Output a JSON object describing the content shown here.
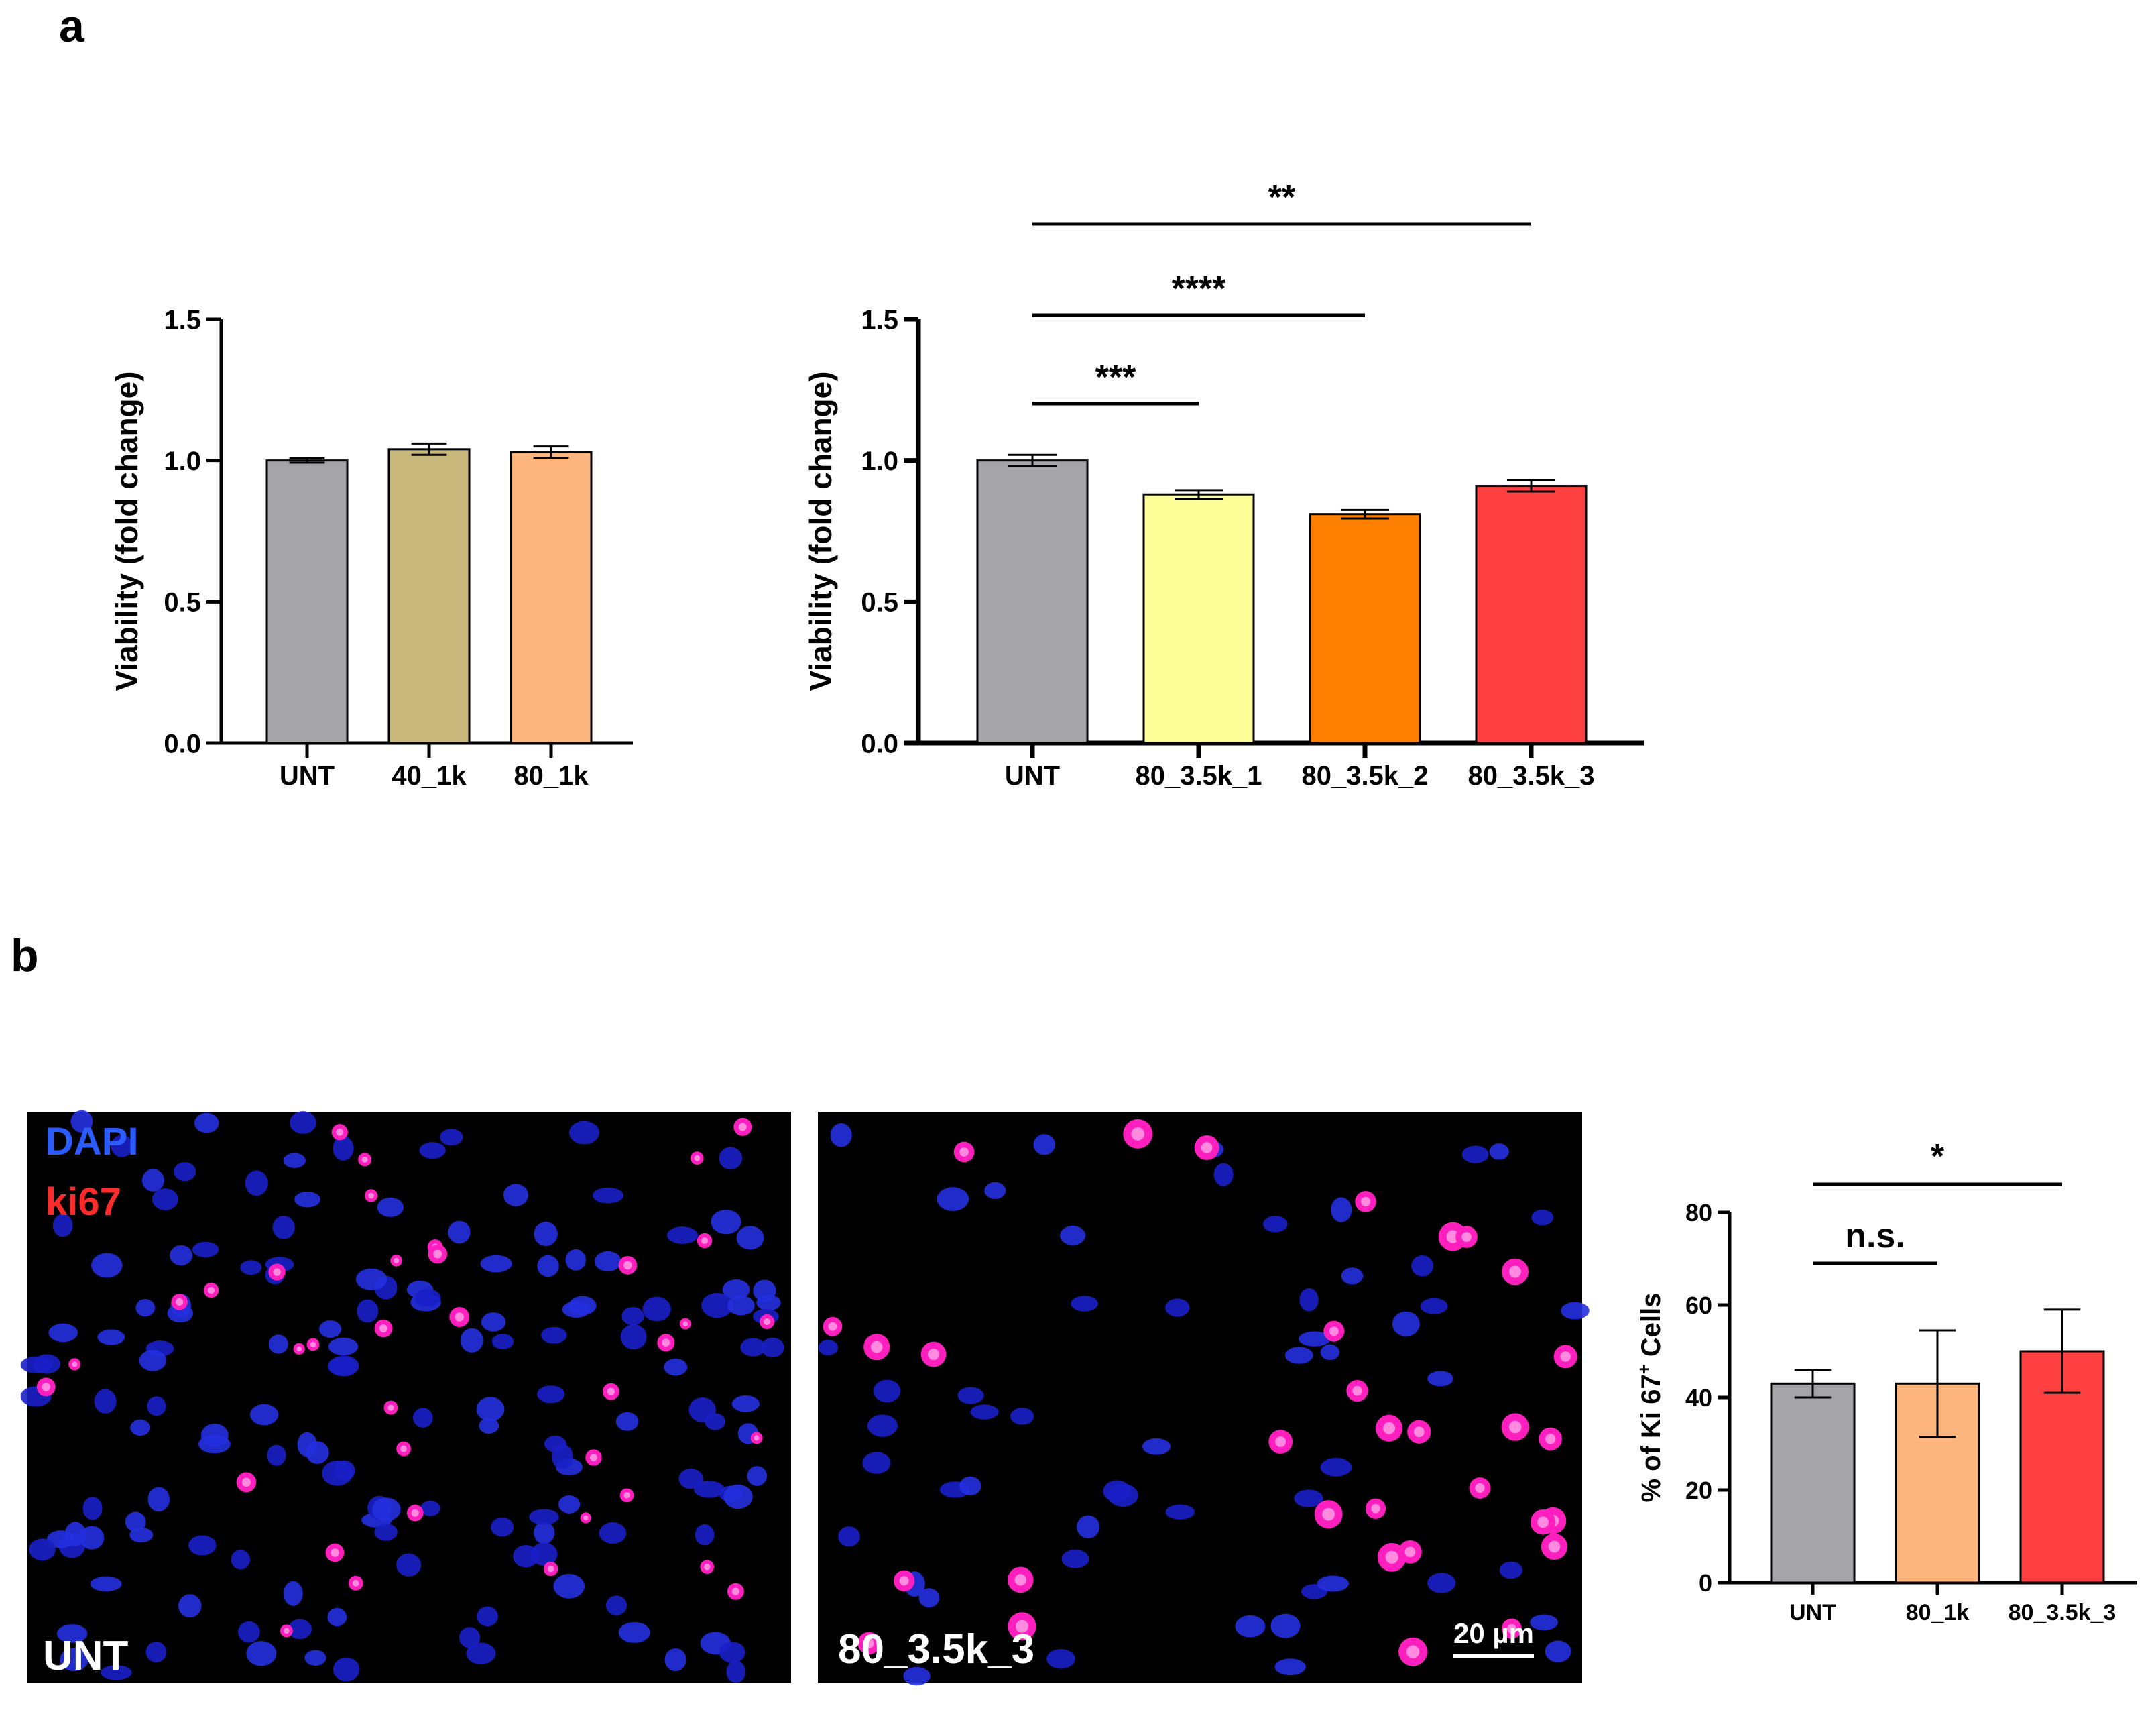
{
  "figure": {
    "panel_a_letter": "a",
    "panel_b_letter": "b"
  },
  "chart_data": [
    {
      "id": "a_left",
      "type": "bar",
      "categories": [
        "UNT",
        "40_1k",
        "80_1k"
      ],
      "values": [
        1.0,
        1.04,
        1.03
      ],
      "errors": [
        0.008,
        0.02,
        0.02
      ],
      "colors": [
        "#a5a4a9",
        "#c8b87c",
        "#fbb57d"
      ],
      "ylabel": "Viability (fold change)",
      "ylim": [
        0,
        1.5
      ],
      "yticks": [
        "0.0",
        "0.5",
        "1.0",
        "1.5"
      ],
      "significance": []
    },
    {
      "id": "a_right",
      "type": "bar",
      "categories": [
        "UNT",
        "80_3.5k_1",
        "80_3.5k_2",
        "80_3.5k_3"
      ],
      "values": [
        1.0,
        0.88,
        0.81,
        0.91
      ],
      "errors": [
        0.02,
        0.015,
        0.015,
        0.02
      ],
      "colors": [
        "#a5a4a9",
        "#ffff99",
        "#ff8000",
        "#ff4040"
      ],
      "ylabel": "Viability (fold change)",
      "ylim": [
        0,
        1.5
      ],
      "yticks": [
        "0.0",
        "0.5",
        "1.0",
        "1.5"
      ],
      "significance": [
        {
          "from": 0,
          "to": 1,
          "label": "***"
        },
        {
          "from": 0,
          "to": 2,
          "label": "****"
        },
        {
          "from": 0,
          "to": 3,
          "label": "**"
        }
      ]
    },
    {
      "id": "b_right",
      "type": "bar",
      "categories": [
        "UNT",
        "80_1k",
        "80_3.5k_3"
      ],
      "values": [
        43,
        43,
        50
      ],
      "errors": [
        3,
        11.5,
        9
      ],
      "colors": [
        "#a5a4a9",
        "#fbb57d",
        "#ff4040"
      ],
      "ylabel_main": "% of Ki 67",
      "ylabel_sup": "+",
      "ylabel_end": " Cells",
      "ylim": [
        0,
        80
      ],
      "yticks": [
        "0",
        "20",
        "40",
        "60",
        "80"
      ],
      "significance": [
        {
          "from": 0,
          "to": 1,
          "label": "n.s."
        },
        {
          "from": 0,
          "to": 2,
          "label": "*"
        }
      ]
    }
  ],
  "micrographs": {
    "left_label": "UNT",
    "right_label": "80_3.5k_3",
    "channel_dapi": "DAPI",
    "channel_ki67": "ki67",
    "scale_bar": "20 µm"
  }
}
